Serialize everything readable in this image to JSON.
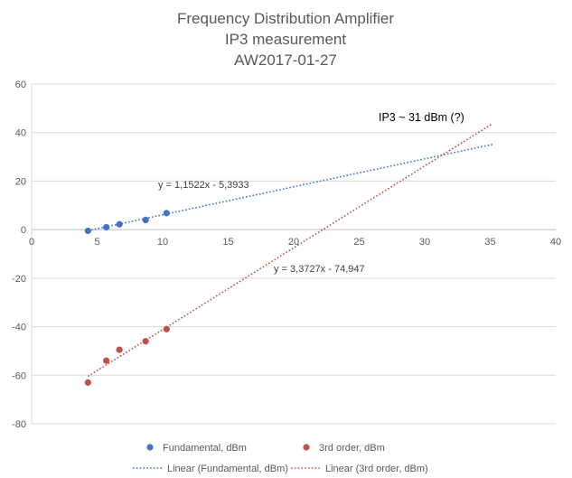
{
  "chart_data": {
    "type": "scatter",
    "title": [
      "Frequency Distribution Amplifier",
      "IP3 measurement",
      "AW2017-01-27"
    ],
    "xlabel": "",
    "ylabel": "",
    "xlim": [
      0,
      40
    ],
    "ylim": [
      -80,
      60
    ],
    "x_ticks": [
      0,
      5,
      10,
      15,
      20,
      25,
      30,
      35,
      40
    ],
    "y_ticks": [
      -80,
      -60,
      -40,
      -20,
      0,
      20,
      40,
      60
    ],
    "grid": "horizontal",
    "legend_position": "bottom",
    "series": [
      {
        "name": "Fundamental, dBm",
        "color": "#4472C4",
        "x": [
          4.3,
          5.7,
          6.7,
          8.7,
          10.3
        ],
        "y": [
          -0.5,
          1,
          2.2,
          4,
          6.8
        ]
      },
      {
        "name": "3rd order, dBm",
        "color": "#C0504D",
        "x": [
          4.3,
          5.7,
          6.7,
          8.7,
          10.3
        ],
        "y": [
          -63,
          -54,
          -49.5,
          -46,
          -41
        ]
      }
    ],
    "trendlines": [
      {
        "name": "Linear (Fundamental, dBm)",
        "color": "#4472C4",
        "slope": 1.1522,
        "intercept": -5.3933,
        "x_range": [
          4.3,
          35.2
        ],
        "equation": "y = 1,1522x - 5,3933"
      },
      {
        "name": "Linear (3rd order, dBm)",
        "color": "#C0504D",
        "slope": 3.3727,
        "intercept": -74.947,
        "x_range": [
          4.3,
          35.2
        ],
        "equation": "y = 3,3727x - 74,947"
      }
    ],
    "annotations": [
      {
        "text": "IP3  ~ 31 dBm (?)",
        "x": 30.5,
        "y": 45
      }
    ]
  }
}
